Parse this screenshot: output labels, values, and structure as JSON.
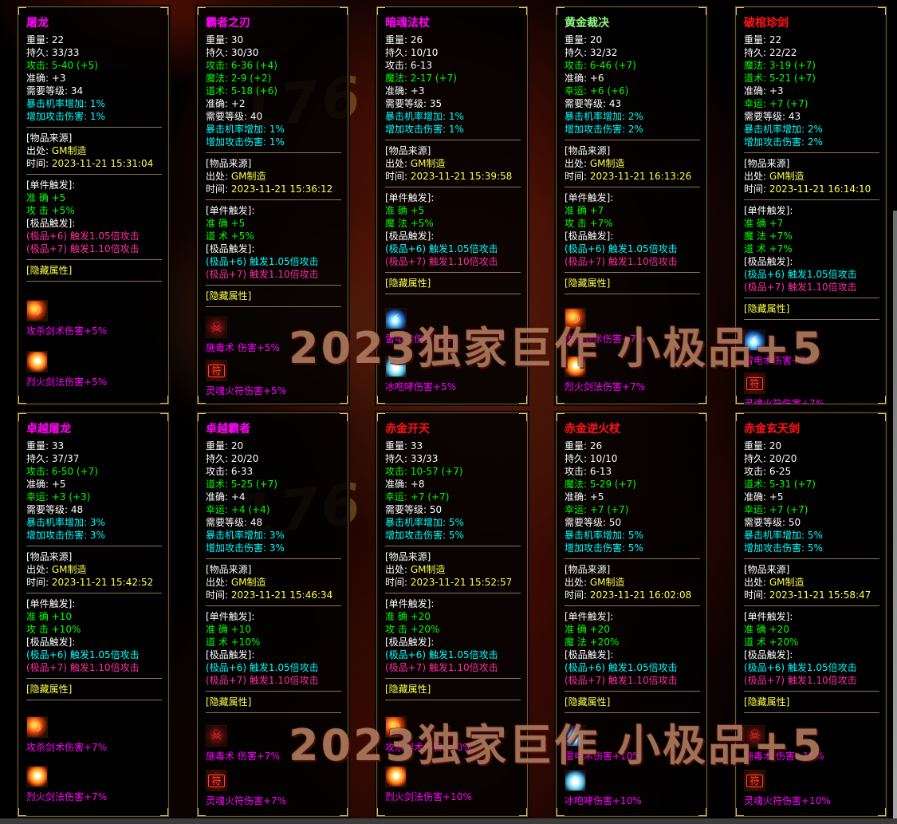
{
  "watermarks": {
    "numeral": "176",
    "band_top": "2023独家巨作 小极品+5",
    "band_bottom": "2023独家巨作 小极品+5"
  },
  "labels": {
    "source_header": "[物品来源]",
    "origin_label": "出处",
    "time_label": "时间",
    "single_header": "[单件触发]:",
    "elite_header": "[极品触发]:",
    "hidden_header": "[隐藏属性]"
  },
  "colors": {
    "stat_green": "#00ff00",
    "stat_cyan": "#00ffff",
    "value_yellow": "#ffff4d",
    "hidden_magenta": "#ff00ff",
    "elite_pink": "#ff2fa0",
    "elite_cyan": "#00ffff"
  },
  "icons": {
    "sword-skill-icon": {
      "glyph": "☽",
      "skill": "攻杀剑术"
    },
    "fire-sword-icon": {
      "glyph": "",
      "skill": "烈火剑法"
    },
    "lightning-icon": {
      "glyph": "⚡",
      "skill": "雷电术"
    },
    "ice-roar-icon": {
      "glyph": "❄",
      "skill": "冰咆哮"
    },
    "poison-skull-icon": {
      "glyph": "☠",
      "skill": "施毒术"
    },
    "soul-fire-talisman-icon": {
      "glyph": "符",
      "skill": "灵魂火符"
    }
  },
  "panels": [
    {
      "title": "屠龙",
      "title_color": "#ff00ff",
      "stats": [
        {
          "label": "重量",
          "value": "22",
          "color": "white"
        },
        {
          "label": "持久",
          "value": "33/33",
          "color": "white"
        },
        {
          "label": "攻击",
          "value": "5-40 (+5)",
          "color": "green"
        },
        {
          "label": "准确",
          "value": "+3",
          "color": "white"
        },
        {
          "label": "需要等级",
          "value": "34",
          "color": "white"
        },
        {
          "label": "暴击机率增加",
          "value": "1%",
          "color": "cyan"
        },
        {
          "label": "增加攻击伤害",
          "value": "1%",
          "color": "cyan"
        }
      ],
      "source": {
        "origin": "GM制造",
        "time": "2023-11-21 15:31:04"
      },
      "single": [
        "准 确 +5",
        "攻 击 +5%"
      ],
      "elite": [
        {
          "text": "(极品+6) 触发1.05倍攻击",
          "color": "pink"
        },
        {
          "text": "(极品+7) 触发1.10倍攻击",
          "color": "pink"
        }
      ],
      "hidden": [
        {
          "icon": "sword-skill-icon",
          "text": "攻杀剑术伤害+5%"
        },
        {
          "icon": "fire-sword-icon",
          "text": "烈火剑法伤害+5%"
        }
      ]
    },
    {
      "title": "霸者之刃",
      "title_color": "#ff00ff",
      "stats": [
        {
          "label": "重量",
          "value": "30",
          "color": "white"
        },
        {
          "label": "持久",
          "value": "30/30",
          "color": "white"
        },
        {
          "label": "攻击",
          "value": "6-36 (+4)",
          "color": "green"
        },
        {
          "label": "魔法",
          "value": "2-9 (+2)",
          "color": "green"
        },
        {
          "label": "道术",
          "value": "5-18 (+6)",
          "color": "green"
        },
        {
          "label": "准确",
          "value": "+2",
          "color": "white"
        },
        {
          "label": "需要等级",
          "value": "40",
          "color": "white"
        },
        {
          "label": "暴击机率增加",
          "value": "1%",
          "color": "cyan"
        },
        {
          "label": "增加攻击伤害",
          "value": "1%",
          "color": "cyan"
        }
      ],
      "source": {
        "origin": "GM制造",
        "time": "2023-11-21 15:36:12"
      },
      "single": [
        "准 确 +5",
        "道 术 +5%"
      ],
      "elite": [
        {
          "text": "(极品+6) 触发1.05倍攻击",
          "color": "cyan"
        },
        {
          "text": "(极品+7) 触发1.10倍攻击",
          "color": "pink"
        }
      ],
      "hidden": [
        {
          "icon": "poison-skull-icon",
          "text": "施毒术  伤害+5%"
        },
        {
          "icon": "soul-fire-talisman-icon",
          "text": "灵魂火符伤害+5%"
        }
      ]
    },
    {
      "title": "暗魂法杖",
      "title_color": "#ff00ff",
      "stats": [
        {
          "label": "重量",
          "value": "26",
          "color": "white"
        },
        {
          "label": "持久",
          "value": "10/10",
          "color": "white"
        },
        {
          "label": "攻击",
          "value": "6-13",
          "color": "white"
        },
        {
          "label": "魔法",
          "value": "2-17 (+7)",
          "color": "green"
        },
        {
          "label": "准确",
          "value": "+3",
          "color": "white"
        },
        {
          "label": "需要等级",
          "value": "35",
          "color": "white"
        },
        {
          "label": "暴击机率增加",
          "value": "1%",
          "color": "cyan"
        },
        {
          "label": "增加攻击伤害",
          "value": "1%",
          "color": "cyan"
        }
      ],
      "source": {
        "origin": "GM制造",
        "time": "2023-11-21 15:39:58"
      },
      "single": [
        "准 确 +5",
        "魔 法 +5%"
      ],
      "elite": [
        {
          "text": "(极品+6) 触发1.05倍攻击",
          "color": "cyan"
        },
        {
          "text": "(极品+7) 触发1.10倍攻击",
          "color": "pink"
        }
      ],
      "hidden": [
        {
          "icon": "lightning-icon",
          "text": "雷电术伤害+5%"
        },
        {
          "icon": "ice-roar-icon",
          "text": "冰咆哮伤害+5%"
        }
      ]
    },
    {
      "title": "黄金裁决",
      "title_color": "#7fff7f",
      "stats": [
        {
          "label": "重量",
          "value": "20",
          "color": "white"
        },
        {
          "label": "持久",
          "value": "32/32",
          "color": "white"
        },
        {
          "label": "攻击",
          "value": "6-46 (+7)",
          "color": "green"
        },
        {
          "label": "准确",
          "value": "+6",
          "color": "white"
        },
        {
          "label": "幸运",
          "value": "+6 (+6)",
          "color": "green"
        },
        {
          "label": "需要等级",
          "value": "43",
          "color": "white"
        },
        {
          "label": "暴击机率增加",
          "value": "2%",
          "color": "cyan"
        },
        {
          "label": "增加攻击伤害",
          "value": "2%",
          "color": "cyan"
        }
      ],
      "source": {
        "origin": "GM制造",
        "time": "2023-11-21 16:13:26"
      },
      "single": [
        "准 确 +7",
        "攻 击 +7%"
      ],
      "elite": [
        {
          "text": "(极品+6) 触发1.05倍攻击",
          "color": "cyan"
        },
        {
          "text": "(极品+7) 触发1.10倍攻击",
          "color": "pink"
        }
      ],
      "hidden": [
        {
          "icon": "sword-skill-icon",
          "text": "攻杀剑术伤害+7%"
        },
        {
          "icon": "fire-sword-icon",
          "text": "烈火剑法伤害+7%"
        }
      ]
    },
    {
      "title": "破棺珍剑",
      "title_color": "#ff1414",
      "stats": [
        {
          "label": "重量",
          "value": "22",
          "color": "white"
        },
        {
          "label": "持久",
          "value": "22/22",
          "color": "white"
        },
        {
          "label": "魔法",
          "value": "3-19 (+7)",
          "color": "green"
        },
        {
          "label": "道术",
          "value": "5-21 (+7)",
          "color": "green"
        },
        {
          "label": "准确",
          "value": "+3",
          "color": "white"
        },
        {
          "label": "幸运",
          "value": "+7 (+7)",
          "color": "green"
        },
        {
          "label": "需要等级",
          "value": "43",
          "color": "white"
        },
        {
          "label": "暴击机率增加",
          "value": "2%",
          "color": "cyan"
        },
        {
          "label": "增加攻击伤害",
          "value": "2%",
          "color": "cyan"
        }
      ],
      "source": {
        "origin": "GM制造",
        "time": "2023-11-21 16:14:10"
      },
      "single": [
        "准 确 +7",
        "魔 法 +7%",
        "道 术 +7%"
      ],
      "elite": [
        {
          "text": "(极品+6) 触发1.05倍攻击",
          "color": "cyan"
        },
        {
          "text": "(极品+7) 触发1.10倍攻击",
          "color": "pink"
        }
      ],
      "hidden": [
        {
          "icon": "lightning-icon",
          "text": "雷电术伤害+7%"
        },
        {
          "icon": "soul-fire-talisman-icon",
          "text": "灵魂火符伤害+7%"
        }
      ]
    },
    {
      "title": "卓越屠龙",
      "title_color": "#ff00ff",
      "stats": [
        {
          "label": "重量",
          "value": "33",
          "color": "white"
        },
        {
          "label": "持久",
          "value": "37/37",
          "color": "white"
        },
        {
          "label": "攻击",
          "value": "6-50 (+7)",
          "color": "green"
        },
        {
          "label": "准确",
          "value": "+5",
          "color": "white"
        },
        {
          "label": "幸运",
          "value": "+3 (+3)",
          "color": "green"
        },
        {
          "label": "需要等级",
          "value": "48",
          "color": "white"
        },
        {
          "label": "暴击机率增加",
          "value": "3%",
          "color": "cyan"
        },
        {
          "label": "增加攻击伤害",
          "value": "3%",
          "color": "cyan"
        }
      ],
      "source": {
        "origin": "GM制造",
        "time": "2023-11-21 15:42:52"
      },
      "single": [
        "准 确 +10",
        "攻 击 +10%"
      ],
      "elite": [
        {
          "text": "(极品+6) 触发1.05倍攻击",
          "color": "cyan"
        },
        {
          "text": "(极品+7) 触发1.10倍攻击",
          "color": "pink"
        }
      ],
      "hidden": [
        {
          "icon": "sword-skill-icon",
          "text": "攻杀剑术伤害+7%"
        },
        {
          "icon": "fire-sword-icon",
          "text": "烈火剑法伤害+7%"
        }
      ]
    },
    {
      "title": "卓越霸者",
      "title_color": "#ff00ff",
      "stats": [
        {
          "label": "重量",
          "value": "20",
          "color": "white"
        },
        {
          "label": "持久",
          "value": "20/20",
          "color": "white"
        },
        {
          "label": "攻击",
          "value": "6-33",
          "color": "white"
        },
        {
          "label": "道术",
          "value": "5-25 (+7)",
          "color": "green"
        },
        {
          "label": "准确",
          "value": "+4",
          "color": "white"
        },
        {
          "label": "幸运",
          "value": "+4 (+4)",
          "color": "green"
        },
        {
          "label": "需要等级",
          "value": "48",
          "color": "white"
        },
        {
          "label": "暴击机率增加",
          "value": "3%",
          "color": "cyan"
        },
        {
          "label": "增加攻击伤害",
          "value": "3%",
          "color": "cyan"
        }
      ],
      "source": {
        "origin": "GM制造",
        "time": "2023-11-21 15:46:34"
      },
      "single": [
        "准 确 +10",
        "道 术 +10%"
      ],
      "elite": [
        {
          "text": "(极品+6) 触发1.05倍攻击",
          "color": "cyan"
        },
        {
          "text": "(极品+7) 触发1.10倍攻击",
          "color": "pink"
        }
      ],
      "hidden": [
        {
          "icon": "poison-skull-icon",
          "text": "施毒术  伤害+7%"
        },
        {
          "icon": "soul-fire-talisman-icon",
          "text": "灵魂火符伤害+7%"
        }
      ]
    },
    {
      "title": "赤金开天",
      "title_color": "#ff1414",
      "stats": [
        {
          "label": "重量",
          "value": "33",
          "color": "white"
        },
        {
          "label": "持久",
          "value": "33/33",
          "color": "white"
        },
        {
          "label": "攻击",
          "value": "10-57 (+7)",
          "color": "green"
        },
        {
          "label": "准确",
          "value": "+8",
          "color": "white"
        },
        {
          "label": "幸运",
          "value": "+7 (+7)",
          "color": "green"
        },
        {
          "label": "需要等级",
          "value": "50",
          "color": "white"
        },
        {
          "label": "暴击机率增加",
          "value": "5%",
          "color": "cyan"
        },
        {
          "label": "增加攻击伤害",
          "value": "5%",
          "color": "cyan"
        }
      ],
      "source": {
        "origin": "GM制造",
        "time": "2023-11-21 15:52:57"
      },
      "single": [
        "准 确 +20",
        "攻 击 +20%"
      ],
      "elite": [
        {
          "text": "(极品+6) 触发1.05倍攻击",
          "color": "cyan"
        },
        {
          "text": "(极品+7) 触发1.10倍攻击",
          "color": "pink"
        }
      ],
      "hidden": [
        {
          "icon": "sword-skill-icon",
          "text": "攻杀剑术伤害+10%"
        },
        {
          "icon": "fire-sword-icon",
          "text": "烈火剑法伤害+10%"
        }
      ]
    },
    {
      "title": "赤金逆火杖",
      "title_color": "#ff1414",
      "stats": [
        {
          "label": "重量",
          "value": "26",
          "color": "white"
        },
        {
          "label": "持久",
          "value": "10/10",
          "color": "white"
        },
        {
          "label": "攻击",
          "value": "6-13",
          "color": "white"
        },
        {
          "label": "魔法",
          "value": "5-29 (+7)",
          "color": "green"
        },
        {
          "label": "准确",
          "value": "+5",
          "color": "white"
        },
        {
          "label": "幸运",
          "value": "+7 (+7)",
          "color": "green"
        },
        {
          "label": "需要等级",
          "value": "50",
          "color": "white"
        },
        {
          "label": "暴击机率增加",
          "value": "5%",
          "color": "cyan"
        },
        {
          "label": "增加攻击伤害",
          "value": "5%",
          "color": "cyan"
        }
      ],
      "source": {
        "origin": "GM制造",
        "time": "2023-11-21 16:02:08"
      },
      "single": [
        "准 确 +20",
        "魔 法 +20%"
      ],
      "elite": [
        {
          "text": "(极品+6) 触发1.05倍攻击",
          "color": "cyan"
        },
        {
          "text": "(极品+7) 触发1.10倍攻击",
          "color": "pink"
        }
      ],
      "hidden": [
        {
          "icon": "lightning-icon",
          "text": "雷电术伤害+10%"
        },
        {
          "icon": "ice-roar-icon",
          "text": "冰咆哮伤害+10%"
        }
      ]
    },
    {
      "title": "赤金玄天剑",
      "title_color": "#ff1414",
      "stats": [
        {
          "label": "重量",
          "value": "20",
          "color": "white"
        },
        {
          "label": "持久",
          "value": "20/20",
          "color": "white"
        },
        {
          "label": "攻击",
          "value": "6-25",
          "color": "white"
        },
        {
          "label": "道术",
          "value": "5-31 (+7)",
          "color": "green"
        },
        {
          "label": "准确",
          "value": "+5",
          "color": "white"
        },
        {
          "label": "幸运",
          "value": "+7 (+7)",
          "color": "green"
        },
        {
          "label": "需要等级",
          "value": "50",
          "color": "white"
        },
        {
          "label": "暴击机率增加",
          "value": "5%",
          "color": "cyan"
        },
        {
          "label": "增加攻击伤害",
          "value": "5%",
          "color": "cyan"
        }
      ],
      "source": {
        "origin": "GM制造",
        "time": "2023-11-21 15:58:47"
      },
      "single": [
        "准 确 +20",
        "道 术 +20%"
      ],
      "elite": [
        {
          "text": "(极品+6) 触发1.05倍攻击",
          "color": "cyan"
        },
        {
          "text": "(极品+7) 触发1.10倍攻击",
          "color": "pink"
        }
      ],
      "hidden": [
        {
          "icon": "poison-skull-icon",
          "text": "施毒术  伤害+10%"
        },
        {
          "icon": "soul-fire-talisman-icon",
          "text": "灵魂火符伤害+10%"
        }
      ]
    }
  ]
}
